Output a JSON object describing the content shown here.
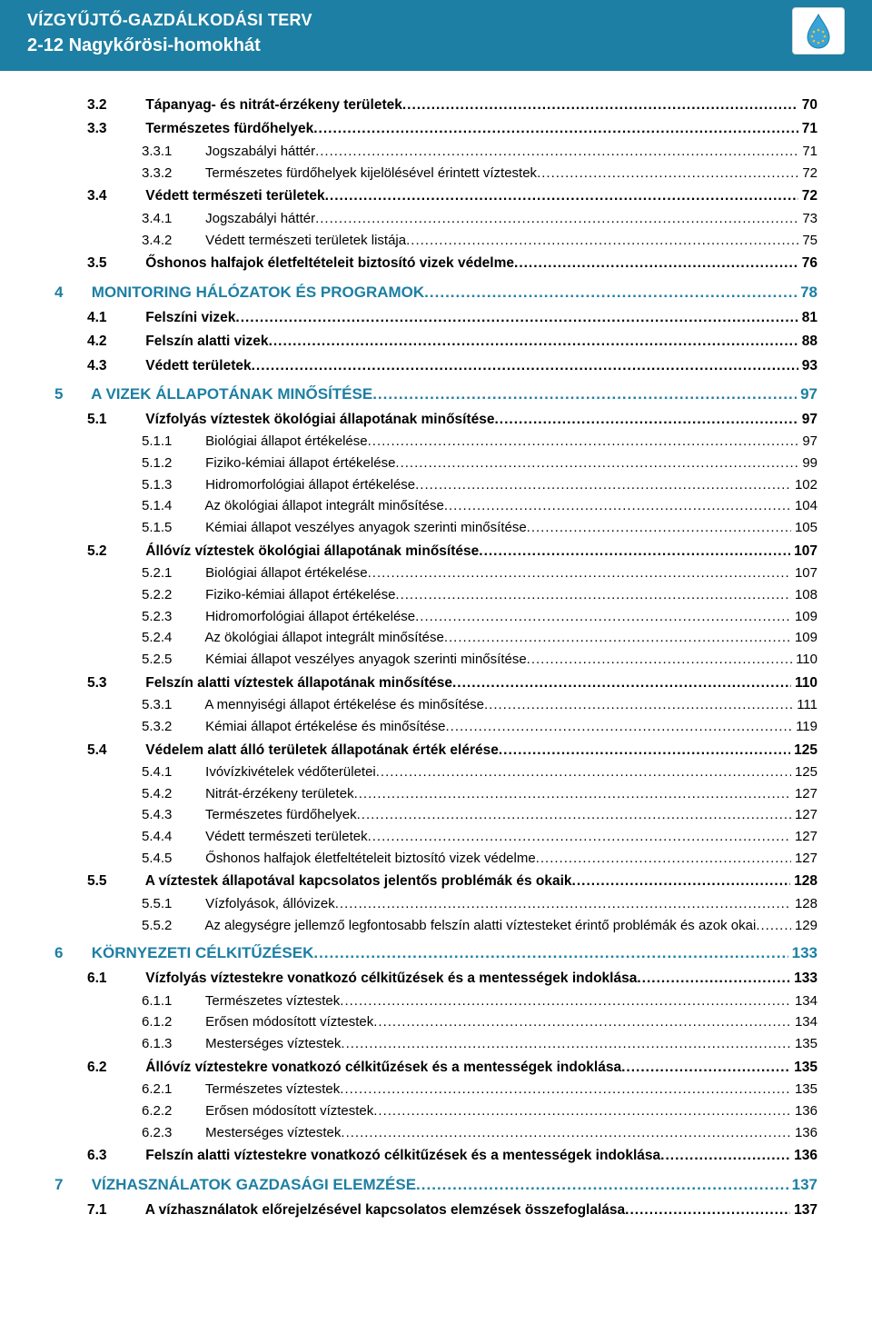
{
  "header": {
    "line1": "VÍZGYŰJTŐ-GAZDÁLKODÁSI TERV",
    "line2": "2-12 Nagykőrösi-homokhát",
    "band_color": "#1c7fa3",
    "text_color": "#ffffff"
  },
  "colors": {
    "chapter_color": "#1c7fa3",
    "section_color": "#000000",
    "sub_color": "#000000",
    "background": "#ffffff",
    "dot_color": "#000000"
  },
  "typography": {
    "base_font": "Arial",
    "base_size_pt": 11,
    "chapter_size_pt": 13,
    "section_weight": "bold",
    "sub_weight": "normal"
  },
  "toc": [
    {
      "level": "sec",
      "num": "3.2",
      "label": "Tápanyag- és nitrát-érzékeny területek",
      "page": "70"
    },
    {
      "level": "sec",
      "num": "3.3",
      "label": "Természetes fürdőhelyek",
      "page": "71"
    },
    {
      "level": "sub",
      "num": "3.3.1",
      "label": "Jogszabályi háttér",
      "page": "71"
    },
    {
      "level": "sub",
      "num": "3.3.2",
      "label": "Természetes fürdőhelyek kijelölésével érintett víztestek",
      "page": "72"
    },
    {
      "level": "sec",
      "num": "3.4",
      "label": "Védett természeti területek",
      "page": "72"
    },
    {
      "level": "sub",
      "num": "3.4.1",
      "label": "Jogszabályi háttér",
      "page": "73"
    },
    {
      "level": "sub",
      "num": "3.4.2",
      "label": "Védett természeti területek listája",
      "page": "75"
    },
    {
      "level": "sec",
      "num": "3.5",
      "label": "Őshonos halfajok életfeltételeit biztosító vizek védelme",
      "page": "76"
    },
    {
      "level": "ch",
      "num": "4",
      "label": "MONITORING HÁLÓZATOK ÉS PROGRAMOK",
      "page": "78"
    },
    {
      "level": "sec",
      "num": "4.1",
      "label": "Felszíni vizek",
      "page": "81"
    },
    {
      "level": "sec",
      "num": "4.2",
      "label": "Felszín alatti vizek",
      "page": "88"
    },
    {
      "level": "sec",
      "num": "4.3",
      "label": "Védett területek",
      "page": "93"
    },
    {
      "level": "ch",
      "num": "5",
      "label": "A VIZEK ÁLLAPOTÁNAK MINŐSÍTÉSE",
      "page": "97"
    },
    {
      "level": "sec",
      "num": "5.1",
      "label": "Vízfolyás víztestek ökológiai állapotának minősítése",
      "page": "97"
    },
    {
      "level": "sub",
      "num": "5.1.1",
      "label": "Biológiai állapot értékelése",
      "page": "97"
    },
    {
      "level": "sub",
      "num": "5.1.2",
      "label": "Fiziko-kémiai állapot értékelése",
      "page": "99"
    },
    {
      "level": "sub",
      "num": "5.1.3",
      "label": "Hidromorfológiai állapot értékelése",
      "page": "102"
    },
    {
      "level": "sub",
      "num": "5.1.4",
      "label": "Az ökológiai állapot integrált minősítése",
      "page": "104"
    },
    {
      "level": "sub",
      "num": "5.1.5",
      "label": "Kémiai állapot veszélyes anyagok szerinti minősítése",
      "page": "105"
    },
    {
      "level": "sec",
      "num": "5.2",
      "label": "Állóvíz víztestek ökológiai állapotának minősítése",
      "page": "107"
    },
    {
      "level": "sub",
      "num": "5.2.1",
      "label": "Biológiai állapot értékelése",
      "page": "107"
    },
    {
      "level": "sub",
      "num": "5.2.2",
      "label": "Fiziko-kémiai állapot értékelése",
      "page": "108"
    },
    {
      "level": "sub",
      "num": "5.2.3",
      "label": "Hidromorfológiai állapot értékelése",
      "page": "109"
    },
    {
      "level": "sub",
      "num": "5.2.4",
      "label": "Az ökológiai állapot integrált minősítése",
      "page": "109"
    },
    {
      "level": "sub",
      "num": "5.2.5",
      "label": "Kémiai állapot veszélyes anyagok szerinti minősítése",
      "page": "110"
    },
    {
      "level": "sec",
      "num": "5.3",
      "label": "Felszín alatti víztestek állapotának minősítése",
      "page": "110"
    },
    {
      "level": "sub",
      "num": "5.3.1",
      "label": "A mennyiségi állapot értékelése és minősítése",
      "page": "111"
    },
    {
      "level": "sub",
      "num": "5.3.2",
      "label": "Kémiai állapot értékelése és minősítése",
      "page": "119"
    },
    {
      "level": "sec",
      "num": "5.4",
      "label": "Védelem alatt álló területek állapotának érték elérése",
      "page": "125"
    },
    {
      "level": "sub",
      "num": "5.4.1",
      "label": "Ivóvízkivételek védőterületei",
      "page": "125"
    },
    {
      "level": "sub",
      "num": "5.4.2",
      "label": "Nitrát-érzékeny területek",
      "page": "127"
    },
    {
      "level": "sub",
      "num": "5.4.3",
      "label": "Természetes fürdőhelyek",
      "page": "127"
    },
    {
      "level": "sub",
      "num": "5.4.4",
      "label": "Védett természeti területek",
      "page": "127"
    },
    {
      "level": "sub",
      "num": "5.4.5",
      "label": "Őshonos halfajok életfeltételeit biztosító vizek védelme",
      "page": "127"
    },
    {
      "level": "sec",
      "num": "5.5",
      "label": "A víztestek állapotával kapcsolatos jelentős problémák és okaik",
      "page": "128"
    },
    {
      "level": "sub",
      "num": "5.5.1",
      "label": "Vízfolyások, állóvizek",
      "page": "128"
    },
    {
      "level": "sub",
      "num": "5.5.2",
      "label": "Az alegységre jellemző legfontosabb felszín alatti víztesteket érintő problémák és azok okai",
      "page": "129"
    },
    {
      "level": "ch",
      "num": "6",
      "label": "KÖRNYEZETI CÉLKITŰZÉSEK",
      "page": "133"
    },
    {
      "level": "sec",
      "num": "6.1",
      "label": "Vízfolyás víztestekre vonatkozó célkitűzések és a mentességek indoklása",
      "page": "133"
    },
    {
      "level": "sub",
      "num": "6.1.1",
      "label": "Természetes víztestek",
      "page": "134"
    },
    {
      "level": "sub",
      "num": "6.1.2",
      "label": "Erősen módosított víztestek",
      "page": "134"
    },
    {
      "level": "sub",
      "num": "6.1.3",
      "label": "Mesterséges víztestek",
      "page": "135"
    },
    {
      "level": "sec",
      "num": "6.2",
      "label": "Állóvíz víztestekre vonatkozó célkitűzések és a mentességek indoklása",
      "page": "135"
    },
    {
      "level": "sub",
      "num": "6.2.1",
      "label": "Természetes víztestek",
      "page": "135"
    },
    {
      "level": "sub",
      "num": "6.2.2",
      "label": "Erősen módosított víztestek",
      "page": "136"
    },
    {
      "level": "sub",
      "num": "6.2.3",
      "label": "Mesterséges víztestek",
      "page": "136"
    },
    {
      "level": "sec",
      "num": "6.3",
      "label": "Felszín alatti víztestekre vonatkozó célkitűzések és a mentességek indoklása",
      "page": "136"
    },
    {
      "level": "ch",
      "num": "7",
      "label": "VÍZHASZNÁLATOK GAZDASÁGI ELEMZÉSE",
      "page": "137"
    },
    {
      "level": "sec",
      "num": "7.1",
      "label": "A vízhasználatok előrejelzésével kapcsolatos elemzések összefoglalása",
      "page": "137"
    }
  ]
}
